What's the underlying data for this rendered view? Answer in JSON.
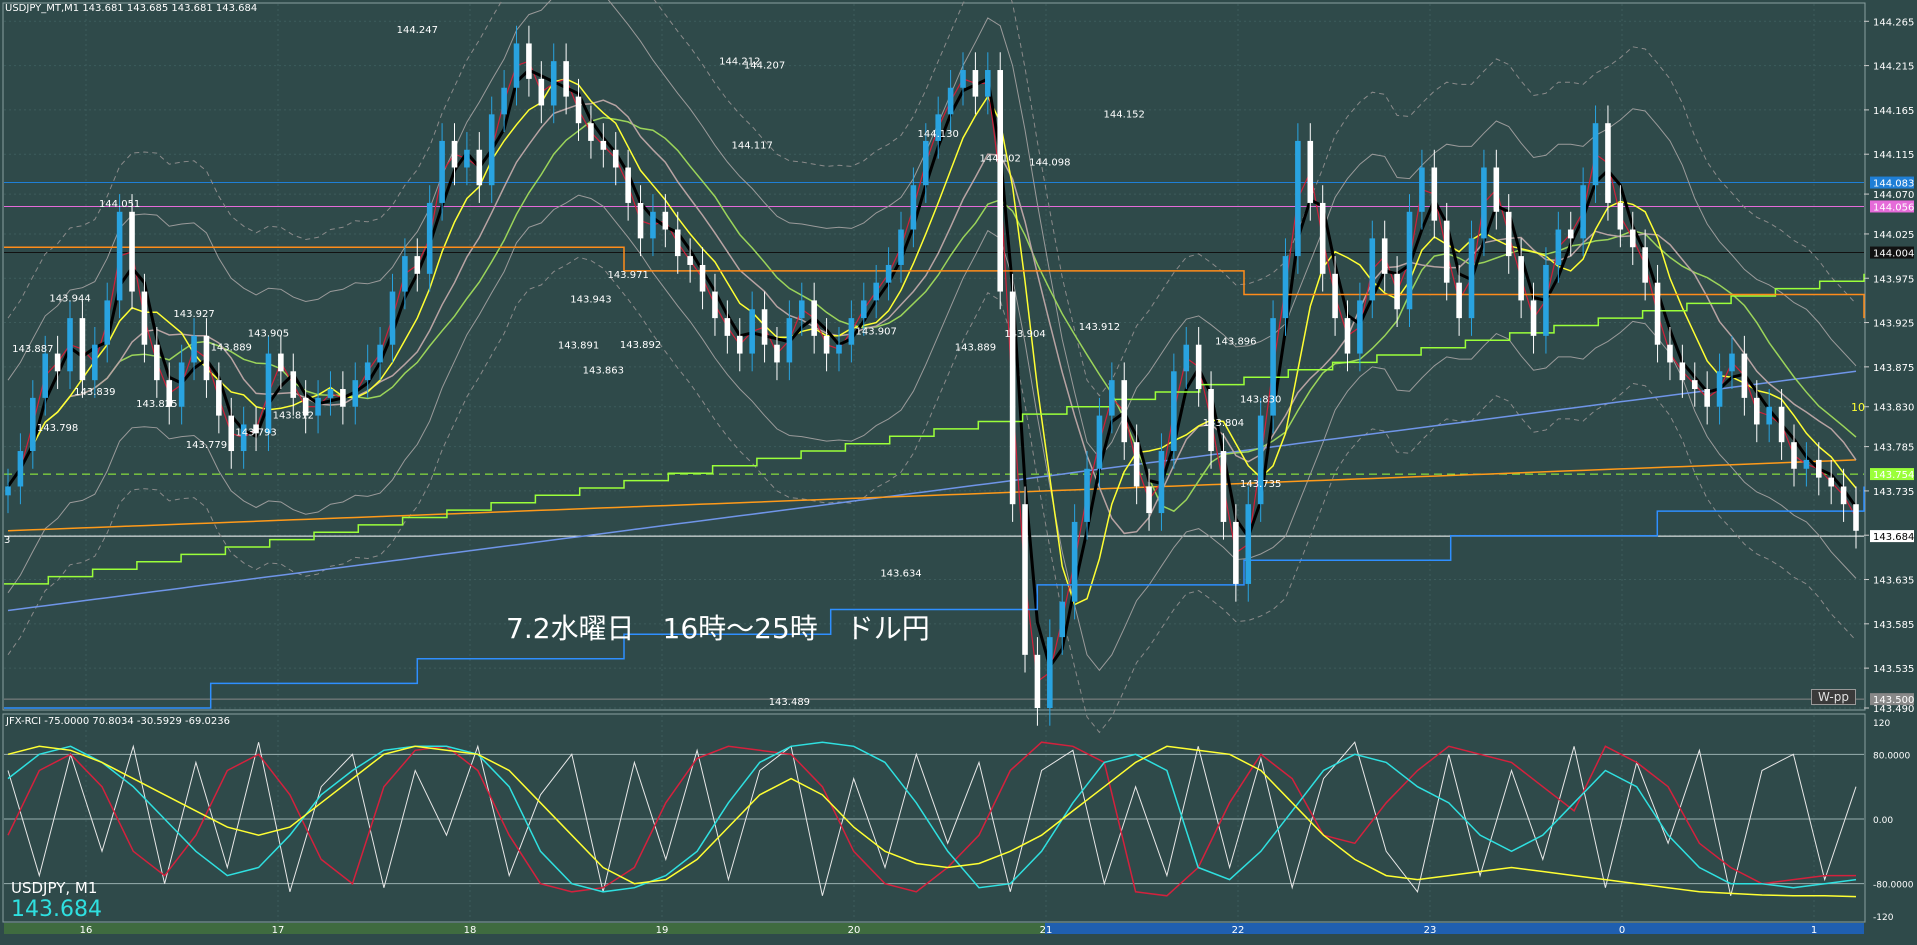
{
  "colors": {
    "background": "#2f4a4a",
    "grid": "#3d5c5c",
    "up_candle": "#29a3e0",
    "down_candle": "#ffffff",
    "ma_black": "#000000",
    "ma_red": "#d0203a",
    "ma_yellow": "#ffff33",
    "ma_lime": "#9bd45a",
    "ma_gray": "#b8a3a3",
    "ma_orange": "#ff9a1a",
    "ma_blue": "#6f95e8",
    "step_lime": "#9bff3a",
    "step_blue": "#2f8fff",
    "step_orange": "#ff8c1a",
    "rci_white": "#e8e8e8",
    "rci_red": "#d4213d",
    "rci_cyan": "#2fe0e0",
    "rci_yellow": "#ffff33"
  },
  "header": {
    "info": "USDJPY_MT,M1  143.681 143.685 143.681 143.684"
  },
  "annotation": "7.2水曜日　16時～25時　ドル円",
  "wpp_label": "W-pp",
  "ten_label": "10",
  "left_marker": "3",
  "rci_header": "JFX-RCI -75.0000 70.8034 -30.5929 -69.0236",
  "symbol_label": "USDJPY, M1",
  "current_price": "143.684",
  "chart_data": [
    {
      "type": "line",
      "subtype": "candlestick",
      "symbol": "USDJPY",
      "timeframe": "M1",
      "ylim": [
        143.49,
        144.28
      ],
      "price_ticks": [
        "144.265",
        "144.215",
        "144.165",
        "144.115",
        "144.070",
        "144.025",
        "143.975",
        "143.925",
        "143.875",
        "143.830",
        "143.785",
        "143.735",
        "143.685",
        "143.635",
        "143.585",
        "143.535",
        "143.490"
      ],
      "x_ticks": [
        "16",
        "17",
        "18",
        "19",
        "20",
        "21",
        "22",
        "23",
        "0",
        "1"
      ],
      "close_series": [
        143.74,
        143.78,
        143.84,
        143.89,
        143.87,
        143.93,
        143.86,
        143.9,
        143.95,
        144.05,
        143.96,
        143.9,
        143.86,
        143.83,
        143.88,
        143.91,
        143.86,
        143.82,
        143.78,
        143.81,
        143.8,
        143.89,
        143.87,
        143.84,
        143.82,
        143.84,
        143.85,
        143.83,
        143.86,
        143.88,
        143.9,
        143.96,
        144.0,
        143.98,
        144.06,
        144.13,
        144.1,
        144.12,
        144.08,
        144.16,
        144.19,
        144.24,
        144.2,
        144.17,
        144.22,
        144.18,
        144.15,
        144.13,
        144.12,
        144.1,
        144.06,
        144.02,
        144.05,
        144.03,
        144.0,
        143.99,
        143.96,
        143.93,
        143.91,
        143.89,
        143.94,
        143.9,
        143.88,
        143.93,
        143.95,
        143.91,
        143.89,
        143.9,
        143.93,
        143.95,
        143.97,
        143.99,
        144.03,
        144.08,
        144.13,
        144.16,
        144.19,
        144.21,
        144.18,
        144.21,
        143.96,
        143.72,
        143.55,
        143.49,
        143.57,
        143.61,
        143.7,
        143.76,
        143.82,
        143.86,
        143.79,
        143.74,
        143.71,
        143.78,
        143.87,
        143.9,
        143.85,
        143.78,
        143.7,
        143.63,
        143.72,
        143.82,
        143.93,
        144.0,
        144.13,
        144.06,
        143.98,
        143.93,
        143.89,
        143.95,
        144.02,
        143.98,
        143.94,
        144.05,
        144.1,
        144.04,
        143.97,
        143.93,
        144.02,
        144.1,
        144.05,
        144.0,
        143.95,
        143.91,
        143.99,
        144.03,
        144.02,
        144.08,
        144.15,
        144.06,
        144.03,
        144.01,
        143.97,
        143.9,
        143.88,
        143.86,
        143.85,
        143.83,
        143.87,
        143.89,
        143.84,
        143.81,
        143.83,
        143.79,
        143.76,
        143.77,
        143.75,
        143.74,
        143.72,
        143.69
      ],
      "horizontal_levels": [
        {
          "price": 144.083,
          "color": "#1f7fd6",
          "tag": "144.083"
        },
        {
          "price": 144.056,
          "color": "#e56bd9",
          "tag": "144.056"
        },
        {
          "price": 144.004,
          "color": "#111111",
          "tag": "144.004"
        },
        {
          "price": 143.754,
          "color": "#9bff3a",
          "tag": "143.754"
        },
        {
          "price": 143.684,
          "color": "#ffffff",
          "tag": "143.684"
        },
        {
          "price": 143.5,
          "color": "#888888",
          "tag": "143.500"
        }
      ],
      "annotations": [
        {
          "text": "143.887",
          "x": 2,
          "y": 143.887
        },
        {
          "text": "143.944",
          "x": 5,
          "y": 143.944
        },
        {
          "text": "143.798",
          "x": 4,
          "y": 143.798
        },
        {
          "text": "144.051",
          "x": 9,
          "y": 144.051
        },
        {
          "text": "143.839",
          "x": 7,
          "y": 143.839
        },
        {
          "text": "143.825",
          "x": 12,
          "y": 143.825
        },
        {
          "text": "143.927",
          "x": 15,
          "y": 143.927
        },
        {
          "text": "143.779",
          "x": 16,
          "y": 143.779
        },
        {
          "text": "143.889",
          "x": 18,
          "y": 143.889
        },
        {
          "text": "143.793",
          "x": 20,
          "y": 143.793
        },
        {
          "text": "143.905",
          "x": 21,
          "y": 143.905
        },
        {
          "text": "143.812",
          "x": 23,
          "y": 143.812
        },
        {
          "text": "144.247",
          "x": 33,
          "y": 144.247
        },
        {
          "text": "143.943",
          "x": 47,
          "y": 143.943
        },
        {
          "text": "143.971",
          "x": 50,
          "y": 143.971
        },
        {
          "text": "143.891",
          "x": 46,
          "y": 143.891
        },
        {
          "text": "143.863",
          "x": 48,
          "y": 143.863
        },
        {
          "text": "143.892",
          "x": 51,
          "y": 143.892
        },
        {
          "text": "144.212",
          "x": 59,
          "y": 144.212
        },
        {
          "text": "144.207",
          "x": 61,
          "y": 144.207
        },
        {
          "text": "144.117",
          "x": 60,
          "y": 144.117
        },
        {
          "text": "143.489",
          "x": 63,
          "y": 143.489
        },
        {
          "text": "143.907",
          "x": 70,
          "y": 143.907
        },
        {
          "text": "143.634",
          "x": 72,
          "y": 143.634
        },
        {
          "text": "144.130",
          "x": 75,
          "y": 144.13
        },
        {
          "text": "143.889",
          "x": 78,
          "y": 143.889
        },
        {
          "text": "144.102",
          "x": 80,
          "y": 144.102
        },
        {
          "text": "143.904",
          "x": 82,
          "y": 143.904
        },
        {
          "text": "144.098",
          "x": 84,
          "y": 144.098
        },
        {
          "text": "143.912",
          "x": 88,
          "y": 143.912
        },
        {
          "text": "144.152",
          "x": 90,
          "y": 144.152
        },
        {
          "text": "143.896",
          "x": 99,
          "y": 143.896
        },
        {
          "text": "143.804",
          "x": 98,
          "y": 143.804
        },
        {
          "text": "143.830",
          "x": 101,
          "y": 143.83
        },
        {
          "text": "143.735",
          "x": 101,
          "y": 143.735
        }
      ]
    },
    {
      "type": "line",
      "subtype": "oscillator",
      "name": "JFX-RCI",
      "ylim": [
        -120,
        120
      ],
      "y_ticks": [
        "120",
        "80.0000",
        "0.00",
        "-80.0000",
        "-120"
      ],
      "levels": [
        80,
        0,
        -80
      ],
      "series": [
        {
          "name": "RCI-9",
          "color": "#e8e8e8",
          "values": [
            60,
            -70,
            80,
            -40,
            90,
            -80,
            70,
            -60,
            95,
            -90,
            40,
            80,
            -85,
            60,
            -20,
            90,
            -70,
            30,
            80,
            -90,
            70,
            -50,
            85,
            -75,
            60,
            90,
            -95,
            50,
            -60,
            80,
            -30,
            70,
            -90,
            60,
            85,
            -80,
            40,
            -70,
            90,
            -60,
            75,
            -85,
            50,
            95,
            -40,
            -90,
            80,
            -70,
            60,
            -50,
            90,
            -85,
            70,
            -30,
            85,
            -95,
            60,
            80,
            -75,
            40
          ]
        },
        {
          "name": "RCI-26",
          "color": "#d4213d",
          "values": [
            -20,
            60,
            80,
            40,
            -40,
            -70,
            -20,
            60,
            80,
            30,
            -50,
            -80,
            40,
            85,
            90,
            60,
            -20,
            -80,
            -90,
            -85,
            -60,
            20,
            75,
            90,
            85,
            80,
            40,
            -40,
            -80,
            -90,
            -60,
            -20,
            60,
            95,
            90,
            70,
            -90,
            -95,
            -60,
            20,
            80,
            50,
            -20,
            -30,
            20,
            60,
            90,
            80,
            70,
            40,
            10,
            90,
            70,
            40,
            -30,
            -60,
            -80,
            -75,
            -70,
            -70
          ]
        },
        {
          "name": "RCI-52",
          "color": "#2fe0e0",
          "values": [
            50,
            80,
            90,
            70,
            40,
            0,
            -40,
            -70,
            -60,
            -20,
            30,
            60,
            85,
            90,
            90,
            80,
            40,
            -40,
            -80,
            -90,
            -85,
            -70,
            -40,
            20,
            70,
            90,
            95,
            90,
            70,
            20,
            -40,
            -85,
            -80,
            -40,
            20,
            70,
            80,
            60,
            -60,
            -75,
            -40,
            10,
            60,
            80,
            70,
            40,
            20,
            -20,
            -40,
            -20,
            20,
            60,
            40,
            -20,
            -60,
            -80,
            -80,
            -85,
            -80,
            -75
          ]
        },
        {
          "name": "RCI-200",
          "color": "#ffff33",
          "values": [
            80,
            90,
            85,
            70,
            50,
            30,
            10,
            -10,
            -20,
            -10,
            20,
            50,
            80,
            90,
            85,
            80,
            60,
            20,
            -20,
            -60,
            -80,
            -75,
            -50,
            -10,
            30,
            50,
            30,
            -10,
            -40,
            -55,
            -60,
            -55,
            -40,
            -20,
            10,
            40,
            70,
            90,
            85,
            80,
            60,
            20,
            -20,
            -50,
            -70,
            -75,
            -70,
            -65,
            -60,
            -65,
            -70,
            -75,
            -80,
            -85,
            -90,
            -92,
            -94,
            -95,
            -95,
            -96
          ]
        }
      ]
    }
  ]
}
